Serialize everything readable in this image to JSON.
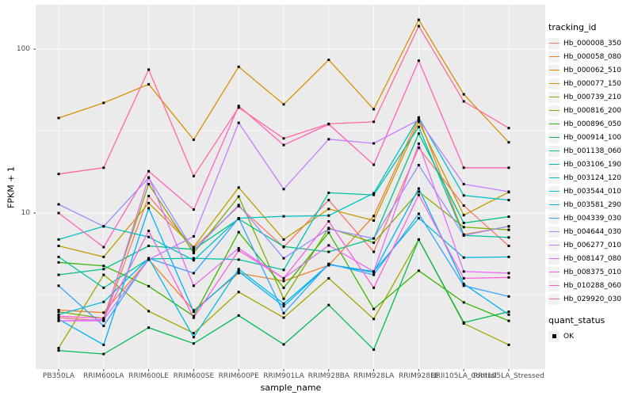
{
  "chart_data": {
    "type": "line",
    "title": "",
    "xlabel": "sample_name",
    "ylabel": "FPKM + 1",
    "x_categories": [
      "PB350LA",
      "RRIM600LA",
      "RRIM600LE",
      "RRIM600SE",
      "RRIM600PE",
      "RRIM901LA",
      "RRIM928BA",
      "RRIM928LA",
      "RRIM928LE",
      "RRII105LA_Control",
      "RRII105LA_Stressed"
    ],
    "y_scale": "log10",
    "ylim": [
      1.1,
      180
    ],
    "y_ticks": [
      {
        "label": "100",
        "value": 100
      },
      {
        "label": "10",
        "value": 10
      }
    ],
    "y_minor_gridlines": [
      31.62,
      3.162
    ],
    "grid": true,
    "legend_position": "right",
    "legend_title": "tracking_id",
    "legend2": {
      "title": "quant_status",
      "items": [
        {
          "label": "OK",
          "marker": "black-square"
        }
      ]
    },
    "point_marker": "black-square",
    "colors": {
      "panel_bg": "#EBEBEB",
      "grid": "#FFFFFF",
      "point": "#000000",
      "legend_key_bg": "#F2F2F2",
      "tick_label": "#4D4D4D",
      "axis_title": "#000000"
    },
    "series": [
      {
        "name": "Hb_000008_350",
        "color": "#F8766D",
        "values": [
          2.3,
          2.2,
          12.7,
          6.1,
          11.0,
          6.2,
          12.0,
          5.8,
          25.0,
          11.1,
          6.3
        ]
      },
      {
        "name": "Hb_000058_080",
        "color": "#EA8331",
        "values": [
          2.56,
          2.47,
          5.2,
          2.55,
          4.3,
          3.85,
          4.8,
          9.6,
          38.0,
          7.4,
          8.3
        ]
      },
      {
        "name": "Hb_000062_510",
        "color": "#D89000",
        "values": [
          38,
          47,
          61,
          28,
          78,
          46,
          86,
          43,
          151,
          53,
          27
        ]
      },
      {
        "name": "Hb_000077_150",
        "color": "#C09B00",
        "values": [
          6.3,
          5.4,
          11.5,
          6.2,
          14.3,
          6.9,
          10.6,
          9.0,
          36.0,
          9.7,
          13.4
        ]
      },
      {
        "name": "Hb_000739_210",
        "color": "#A3A500",
        "values": [
          1.5,
          4.2,
          2.52,
          1.85,
          3.3,
          2.3,
          4.0,
          2.26,
          6.9,
          2.12,
          1.57
        ]
      },
      {
        "name": "Hb_000816_200",
        "color": "#7CAE00",
        "values": [
          2.5,
          2.28,
          15.0,
          5.7,
          12.6,
          3.0,
          8.1,
          6.6,
          13.5,
          8.2,
          7.9
        ]
      },
      {
        "name": "Hb_000896_050",
        "color": "#39B600",
        "values": [
          5.0,
          4.76,
          3.58,
          2.35,
          7.65,
          3.5,
          7.6,
          2.6,
          4.45,
          2.85,
          2.2
        ]
      },
      {
        "name": "Hb_000914_100",
        "color": "#00BB4E",
        "values": [
          1.45,
          1.38,
          2.0,
          1.6,
          2.37,
          1.58,
          2.75,
          1.47,
          6.9,
          2.15,
          2.5
        ]
      },
      {
        "name": "Hb_001138_060",
        "color": "#00C087",
        "values": [
          4.2,
          4.55,
          6.3,
          6.0,
          9.2,
          6.25,
          5.8,
          7.0,
          30.5,
          8.7,
          9.5
        ]
      },
      {
        "name": "Hb_003106_190",
        "color": "#00C1A7",
        "values": [
          5.4,
          3.5,
          5.25,
          5.3,
          5.2,
          4.5,
          13.3,
          12.9,
          33.5,
          7.3,
          7.1
        ]
      },
      {
        "name": "Hb_003124_120",
        "color": "#00BFC4",
        "values": [
          6.9,
          8.3,
          7.15,
          5.15,
          9.3,
          9.55,
          9.65,
          13.2,
          38.3,
          12.8,
          12.0
        ]
      },
      {
        "name": "Hb_003544_010",
        "color": "#00BAE0",
        "values": [
          2.4,
          2.87,
          5.3,
          1.75,
          4.55,
          2.8,
          4.85,
          4.4,
          9.3,
          5.35,
          5.4
        ]
      },
      {
        "name": "Hb_003581_290",
        "color": "#00B0F6",
        "values": [
          2.25,
          1.57,
          10.7,
          2.5,
          4.4,
          2.7,
          4.85,
          4.35,
          14.1,
          3.7,
          2.4
        ]
      },
      {
        "name": "Hb_004339_030",
        "color": "#35A2FF",
        "values": [
          3.6,
          2.05,
          5.3,
          4.3,
          9.3,
          2.45,
          4.9,
          4.2,
          9.9,
          3.6,
          3.1
        ]
      },
      {
        "name": "Hb_004644_030",
        "color": "#9590FF",
        "values": [
          11.3,
          8.3,
          16.4,
          5.9,
          11.2,
          5.3,
          8.0,
          7.0,
          19.6,
          7.3,
          8.3
        ]
      },
      {
        "name": "Hb_006277_010",
        "color": "#C77CFF",
        "values": [
          2.2,
          2.24,
          5.2,
          7.2,
          35.5,
          14.0,
          28.2,
          26.6,
          37.0,
          15.0,
          13.5
        ]
      },
      {
        "name": "Hb_008147_080",
        "color": "#E76BF3",
        "values": [
          2.2,
          2.2,
          16.5,
          3.6,
          6.1,
          4.0,
          6.35,
          4.4,
          26.5,
          4.4,
          4.3
        ]
      },
      {
        "name": "Hb_008375_010",
        "color": "#FA62DB",
        "values": [
          2.35,
          2.28,
          7.78,
          2.3,
          5.9,
          4.0,
          8.9,
          3.5,
          12.9,
          4.0,
          4.05
        ]
      },
      {
        "name": "Hb_010288_060",
        "color": "#FF62BC",
        "values": [
          10.0,
          6.2,
          18.0,
          10.5,
          45.0,
          26.0,
          34.8,
          19.7,
          85.0,
          18.9,
          18.9
        ]
      },
      {
        "name": "Hb_029920_030",
        "color": "#FF6A98",
        "values": [
          17.3,
          18.9,
          75.0,
          16.8,
          44.0,
          28.5,
          35.0,
          36.0,
          138.0,
          48.0,
          33.0
        ]
      }
    ]
  }
}
